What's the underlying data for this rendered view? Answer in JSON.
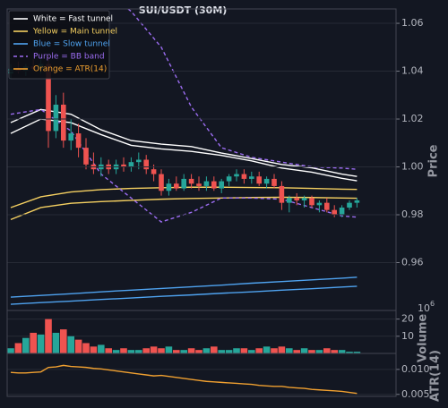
{
  "chart_data": {
    "type": "candlestick",
    "title": "SUI/USDT (30M)",
    "y_label": "Price",
    "volume_label": "Volume",
    "atr_label": "ATR(14)",
    "volume_offset": {
      "base": "10",
      "exponent": "6"
    },
    "up_color": "#26a69a",
    "down_color": "#ef5350",
    "ylim": [
      0.94,
      1.066
    ],
    "yticks": [
      0.96,
      0.98,
      {
        "value": 1.0,
        "label": "1.00"
      },
      1.02,
      1.04,
      1.06
    ],
    "volume_ylim": [
      0,
      25
    ],
    "volume_ticks": [
      10,
      20
    ],
    "atr_ylim": [
      0.0046,
      0.0132
    ],
    "atr_ticks": [
      {
        "value": 0.01,
        "label": "0.010"
      },
      0.005
    ],
    "grid": true,
    "legend": "upper left",
    "open": [
      1.039,
      1.041,
      1.04,
      1.042,
      1.041,
      1.043,
      1.015,
      1.026,
      1.011,
      1.014,
      1.008,
      1.001,
      0.999,
      1.001,
      0.999,
      1.001,
      1.0,
      1.002,
      1.003,
      0.999,
      0.997,
      0.99,
      0.993,
      0.991,
      0.995,
      0.993,
      0.992,
      0.994,
      0.991,
      0.994,
      0.996,
      0.997,
      0.995,
      0.996,
      0.993,
      0.995,
      0.992,
      0.985,
      0.987,
      0.986,
      0.987,
      0.984,
      0.985,
      0.982,
      0.98,
      0.983,
      0.985
    ],
    "high": [
      1.043,
      1.044,
      1.043,
      1.045,
      1.046,
      1.047,
      1.03,
      1.031,
      1.02,
      1.018,
      1.012,
      1.006,
      1.004,
      1.003,
      1.003,
      1.004,
      1.004,
      1.006,
      1.005,
      1.001,
      0.999,
      0.995,
      0.996,
      0.997,
      0.997,
      0.996,
      0.996,
      0.996,
      0.995,
      0.997,
      0.999,
      0.999,
      0.998,
      0.998,
      0.996,
      0.997,
      0.994,
      0.988,
      0.989,
      0.988,
      0.988,
      0.986,
      0.987,
      0.984,
      0.984,
      0.986,
      0.987
    ],
    "low": [
      1.037,
      1.039,
      1.038,
      1.04,
      1.039,
      1.008,
      1.012,
      1.008,
      1.007,
      1.004,
      0.999,
      0.997,
      0.996,
      0.997,
      0.997,
      0.998,
      0.998,
      0.999,
      0.997,
      0.994,
      0.988,
      0.988,
      0.99,
      0.99,
      0.991,
      0.99,
      0.99,
      0.99,
      0.989,
      0.992,
      0.994,
      0.993,
      0.993,
      0.992,
      0.991,
      0.991,
      0.982,
      0.981,
      0.984,
      0.983,
      0.983,
      0.981,
      0.981,
      0.979,
      0.979,
      0.982,
      0.983
    ],
    "close": [
      1.041,
      1.04,
      1.042,
      1.041,
      1.043,
      1.015,
      1.026,
      1.011,
      1.014,
      1.008,
      1.001,
      0.999,
      1.001,
      0.999,
      1.001,
      1.0,
      1.002,
      1.003,
      0.999,
      0.997,
      0.99,
      0.993,
      0.991,
      0.995,
      0.993,
      0.992,
      0.994,
      0.991,
      0.994,
      0.996,
      0.997,
      0.995,
      0.996,
      0.993,
      0.995,
      0.992,
      0.985,
      0.987,
      0.986,
      0.987,
      0.984,
      0.985,
      0.982,
      0.98,
      0.983,
      0.985,
      0.986
    ],
    "volume": [
      3,
      6,
      9,
      12,
      11,
      20,
      12,
      14,
      10,
      8,
      6,
      4,
      5,
      3,
      2,
      3,
      2,
      2,
      3,
      4,
      3,
      4,
      2,
      2,
      3,
      2,
      3,
      4,
      2,
      2,
      3,
      3,
      2,
      3,
      4,
      3,
      4,
      3,
      2,
      3,
      2,
      2,
      3,
      2,
      2,
      1,
      1
    ],
    "atr": {
      "name": "Orange = ATR(14)",
      "color": "#f0a030",
      "values": [
        0.0094,
        0.0093,
        0.0093,
        0.0094,
        0.0095,
        0.0104,
        0.0105,
        0.0108,
        0.0106,
        0.0105,
        0.0104,
        0.0102,
        0.0101,
        0.0099,
        0.0097,
        0.0095,
        0.0093,
        0.0091,
        0.0089,
        0.0087,
        0.0088,
        0.0086,
        0.0084,
        0.0082,
        0.008,
        0.0078,
        0.0076,
        0.0075,
        0.0074,
        0.0073,
        0.0072,
        0.0071,
        0.007,
        0.0068,
        0.0067,
        0.0066,
        0.0066,
        0.0064,
        0.0063,
        0.0062,
        0.006,
        0.0059,
        0.0058,
        0.0057,
        0.0056,
        0.0054,
        0.0052
      ]
    },
    "overlay_x": [
      0,
      4,
      8,
      12,
      16,
      20,
      24,
      28,
      32,
      36,
      40,
      44,
      46
    ],
    "overlays": [
      {
        "name": "White = Fast tunnel",
        "color": "#ffffff",
        "dashed": false,
        "upper": [
          1.0185,
          1.024,
          1.022,
          1.0155,
          1.011,
          1.0095,
          1.0085,
          1.0058,
          1.0035,
          1.001,
          0.9996,
          0.997,
          0.996
        ],
        "lower": [
          1.014,
          1.02,
          1.0185,
          1.0135,
          1.009,
          1.0075,
          1.0065,
          1.0048,
          1.0025,
          0.9995,
          0.9978,
          0.9952,
          0.9942
        ]
      },
      {
        "name": "Yellow = Main tunnel",
        "color": "#f5d061",
        "dashed": false,
        "upper": [
          0.983,
          0.9875,
          0.9895,
          0.9905,
          0.991,
          0.9913,
          0.9915,
          0.9915,
          0.9914,
          0.9913,
          0.991,
          0.9907,
          0.9906
        ],
        "lower": [
          0.978,
          0.983,
          0.9848,
          0.9855,
          0.986,
          0.9865,
          0.9868,
          0.987,
          0.9872,
          0.9873,
          0.9872,
          0.987,
          0.9869
        ]
      },
      {
        "name": "Blue = Slow tunnel",
        "color": "#4fa3f0",
        "dashed": false,
        "upper": [
          0.9456,
          0.9463,
          0.947,
          0.9478,
          0.9485,
          0.9492,
          0.9499,
          0.9506,
          0.9514,
          0.9521,
          0.9528,
          0.9535,
          0.9539
        ],
        "lower": [
          0.9426,
          0.9433,
          0.9439,
          0.9446,
          0.9452,
          0.9459,
          0.9465,
          0.9472,
          0.9478,
          0.9485,
          0.9491,
          0.9498,
          0.9501
        ]
      },
      {
        "name": "Purple = BB band",
        "color": "#9b6cf0",
        "dashed": true,
        "upper": [
          1.07,
          1.075,
          1.08,
          1.075,
          1.065,
          1.05,
          1.025,
          1.008,
          1.004,
          1.002,
          1.0,
          0.9995,
          0.999
        ],
        "lower": [
          1.022,
          1.024,
          1.015,
          0.997,
          0.987,
          0.977,
          0.981,
          0.987,
          0.987,
          0.9865,
          0.983,
          0.9795,
          0.979
        ]
      }
    ]
  }
}
